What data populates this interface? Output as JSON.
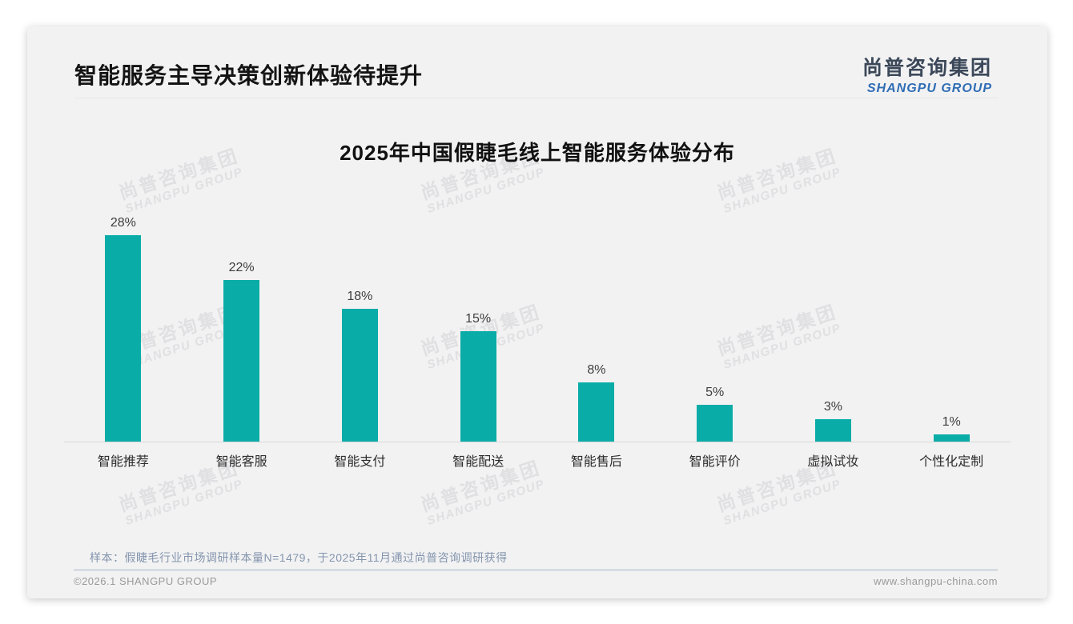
{
  "page": {
    "title": "智能服务主导决策创新体验待提升",
    "logo": {
      "cn": "尚普咨询集团",
      "en": "SHANGPU GROUP"
    },
    "watermark": {
      "line1": "尚普咨询集团",
      "line2": "SHANGPU GROUP"
    },
    "note": "样本：假睫毛行业市场调研样本量N=1479，于2025年11月通过尚普咨询调研获得",
    "footer": {
      "left": "©2026.1 SHANGPU GROUP",
      "right": "www.shangpu-china.com"
    }
  },
  "chart_data": {
    "type": "bar",
    "title": "2025年中国假睫毛线上智能服务体验分布",
    "categories": [
      "智能推荐",
      "智能客服",
      "智能支付",
      "智能配送",
      "智能售后",
      "智能评价",
      "虚拟试妆",
      "个性化定制"
    ],
    "values": [
      28,
      22,
      18,
      15,
      8,
      5,
      3,
      1
    ],
    "unit": "%",
    "xlabel": "",
    "ylabel": "",
    "ylim": [
      0,
      30
    ],
    "grid": false,
    "legend": "none",
    "bar_color": "#0aaca7",
    "value_labels": true
  }
}
